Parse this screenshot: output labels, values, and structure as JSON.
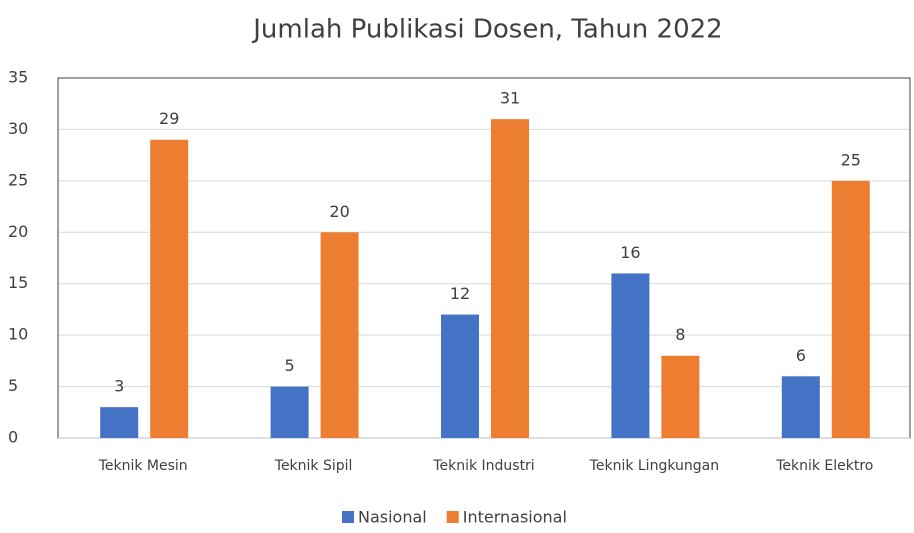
{
  "chart_data": {
    "type": "bar",
    "title": "Jumlah Publikasi Dosen, Tahun 2022",
    "categories": [
      "Teknik Mesin",
      "Teknik Sipil",
      "Teknik Industri",
      "Teknik Lingkungan",
      "Teknik Elektro"
    ],
    "series": [
      {
        "name": "Nasional",
        "color": "#4472c4",
        "values": [
          3,
          5,
          12,
          16,
          6
        ]
      },
      {
        "name": "Internasional",
        "color": "#ed7d31",
        "values": [
          29,
          20,
          31,
          8,
          25
        ]
      }
    ],
    "ylim": [
      0,
      35
    ],
    "yticks": [
      0,
      5,
      10,
      15,
      20,
      25,
      30,
      35
    ],
    "grid": true,
    "legend": "bottom"
  }
}
